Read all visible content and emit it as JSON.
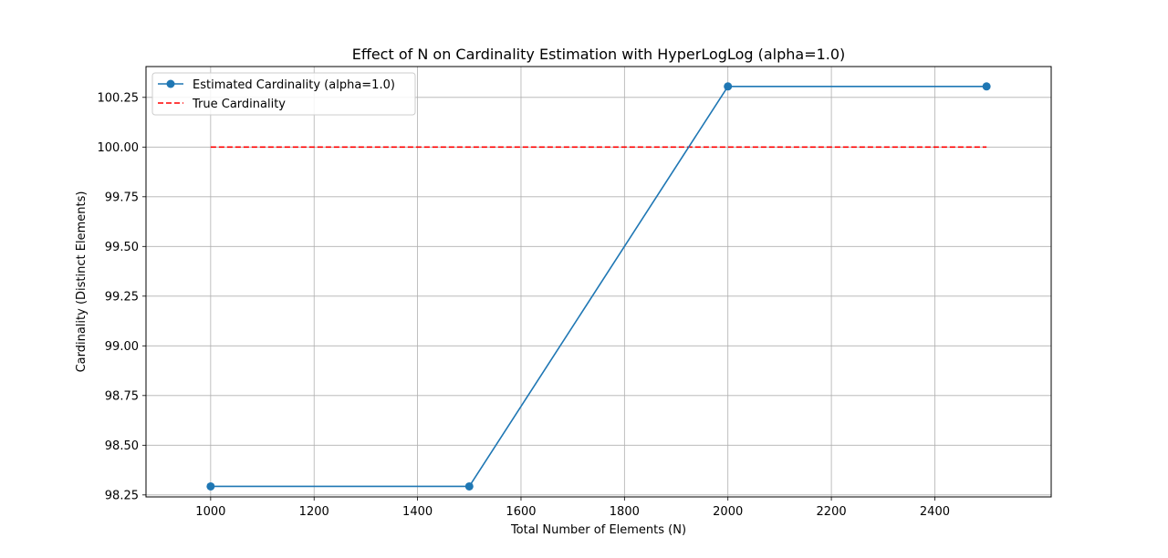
{
  "chart_data": {
    "type": "line",
    "title": "Effect of N on Cardinality Estimation with HyperLogLog (alpha=1.0)",
    "xlabel": "Total Number of Elements (N)",
    "ylabel": "Cardinality (Distinct Elements)",
    "x": [
      1000,
      1500,
      2000,
      2500
    ],
    "xlim": [
      875,
      2625
    ],
    "ylim": [
      98.24,
      100.405
    ],
    "xticks": [
      "1000",
      "1200",
      "1400",
      "1600",
      "1800",
      "2000",
      "2200",
      "2400"
    ],
    "yticks": [
      "98.25",
      "98.50",
      "98.75",
      "99.00",
      "99.25",
      "99.50",
      "99.75",
      "100.00",
      "100.25"
    ],
    "grid": true,
    "legend_position": "upper left",
    "series": [
      {
        "name": "Estimated Cardinality (alpha=1.0)",
        "values": [
          98.293,
          98.293,
          100.305,
          100.305
        ],
        "color": "#1f77b4",
        "style": "solid",
        "marker": "circle"
      },
      {
        "name": "True Cardinality",
        "values": [
          100.0,
          100.0,
          100.0,
          100.0
        ],
        "color": "#ff0000",
        "style": "dashed",
        "marker": "none"
      }
    ]
  }
}
